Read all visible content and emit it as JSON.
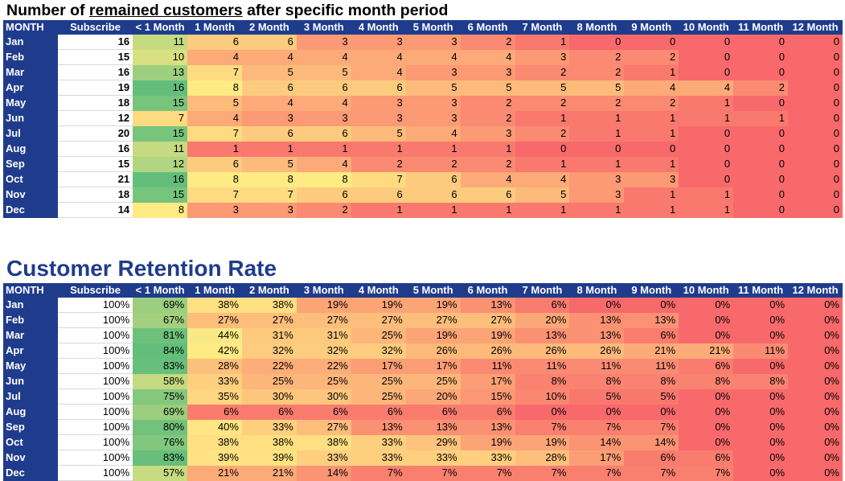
{
  "titles": {
    "count_prefix": "Number of ",
    "count_underlined": "remained customers",
    "count_suffix": " after specific month period",
    "retention": "Customer Retention Rate"
  },
  "headers": [
    "MONTH",
    "Subscribe",
    "< 1 Month",
    "1 Month",
    "2 Month",
    "3 Month",
    "4 Month",
    "5 Month",
    "6 Month",
    "7 Month",
    "8 Month",
    "9 Month",
    "10 Month",
    "11 Month",
    "12 Month"
  ],
  "months": [
    "Jan",
    "Feb",
    "Mar",
    "Apr",
    "May",
    "Jun",
    "Jul",
    "Aug",
    "Sep",
    "Oct",
    "Nov",
    "Dec"
  ],
  "counts": {
    "subscribe": [
      16,
      15,
      16,
      19,
      18,
      12,
      20,
      16,
      15,
      21,
      18,
      14
    ],
    "values": [
      [
        11,
        6,
        6,
        3,
        3,
        3,
        2,
        1,
        0,
        0,
        0,
        0,
        0
      ],
      [
        10,
        4,
        4,
        4,
        4,
        4,
        4,
        3,
        2,
        2,
        0,
        0,
        0
      ],
      [
        13,
        7,
        5,
        5,
        4,
        3,
        3,
        2,
        2,
        1,
        0,
        0,
        0
      ],
      [
        16,
        8,
        6,
        6,
        6,
        5,
        5,
        5,
        5,
        4,
        4,
        2,
        0
      ],
      [
        15,
        5,
        4,
        4,
        3,
        3,
        2,
        2,
        2,
        2,
        1,
        0,
        0
      ],
      [
        7,
        4,
        3,
        3,
        3,
        3,
        2,
        1,
        1,
        1,
        1,
        1,
        0
      ],
      [
        15,
        7,
        6,
        6,
        5,
        4,
        3,
        2,
        1,
        1,
        0,
        0,
        0
      ],
      [
        11,
        1,
        1,
        1,
        1,
        1,
        1,
        0,
        0,
        0,
        0,
        0,
        0
      ],
      [
        12,
        6,
        5,
        4,
        2,
        2,
        2,
        1,
        1,
        1,
        0,
        0,
        0
      ],
      [
        16,
        8,
        8,
        8,
        7,
        6,
        4,
        4,
        3,
        3,
        0,
        0,
        0
      ],
      [
        15,
        7,
        7,
        6,
        6,
        6,
        6,
        5,
        3,
        1,
        1,
        0,
        0
      ],
      [
        8,
        3,
        3,
        2,
        1,
        1,
        1,
        1,
        1,
        1,
        1,
        0,
        0
      ]
    ]
  },
  "retention": {
    "subscribe": [
      "100%",
      "100%",
      "100%",
      "100%",
      "100%",
      "100%",
      "100%",
      "100%",
      "100%",
      "100%",
      "100%",
      "100%"
    ],
    "values": [
      [
        "69%",
        "38%",
        "38%",
        "19%",
        "19%",
        "19%",
        "13%",
        "6%",
        "0%",
        "0%",
        "0%",
        "0%",
        "0%"
      ],
      [
        "67%",
        "27%",
        "27%",
        "27%",
        "27%",
        "27%",
        "27%",
        "20%",
        "13%",
        "13%",
        "0%",
        "0%",
        "0%"
      ],
      [
        "81%",
        "44%",
        "31%",
        "31%",
        "25%",
        "19%",
        "19%",
        "13%",
        "13%",
        "6%",
        "0%",
        "0%",
        "0%"
      ],
      [
        "84%",
        "42%",
        "32%",
        "32%",
        "32%",
        "26%",
        "26%",
        "26%",
        "26%",
        "21%",
        "21%",
        "11%",
        "0%"
      ],
      [
        "83%",
        "28%",
        "22%",
        "22%",
        "17%",
        "17%",
        "11%",
        "11%",
        "11%",
        "11%",
        "6%",
        "0%",
        "0%"
      ],
      [
        "58%",
        "33%",
        "25%",
        "25%",
        "25%",
        "25%",
        "17%",
        "8%",
        "8%",
        "8%",
        "8%",
        "8%",
        "0%"
      ],
      [
        "75%",
        "35%",
        "30%",
        "30%",
        "25%",
        "20%",
        "15%",
        "10%",
        "5%",
        "5%",
        "0%",
        "0%",
        "0%"
      ],
      [
        "69%",
        "6%",
        "6%",
        "6%",
        "6%",
        "6%",
        "6%",
        "0%",
        "0%",
        "0%",
        "0%",
        "0%",
        "0%"
      ],
      [
        "80%",
        "40%",
        "33%",
        "27%",
        "13%",
        "13%",
        "13%",
        "7%",
        "7%",
        "7%",
        "0%",
        "0%",
        "0%"
      ],
      [
        "76%",
        "38%",
        "38%",
        "38%",
        "33%",
        "29%",
        "19%",
        "19%",
        "14%",
        "14%",
        "0%",
        "0%",
        "0%"
      ],
      [
        "83%",
        "39%",
        "39%",
        "33%",
        "33%",
        "33%",
        "33%",
        "28%",
        "17%",
        "6%",
        "6%",
        "0%",
        "0%"
      ],
      [
        "57%",
        "21%",
        "21%",
        "14%",
        "7%",
        "7%",
        "7%",
        "7%",
        "7%",
        "7%",
        "7%",
        "0%",
        "0%"
      ]
    ]
  },
  "colors": {
    "header_bg": "#1f3c8c",
    "header_text": "#ffffff",
    "scale_low": "#f8696b",
    "scale_mid": "#ffeb84",
    "scale_high": "#63be7b"
  }
}
